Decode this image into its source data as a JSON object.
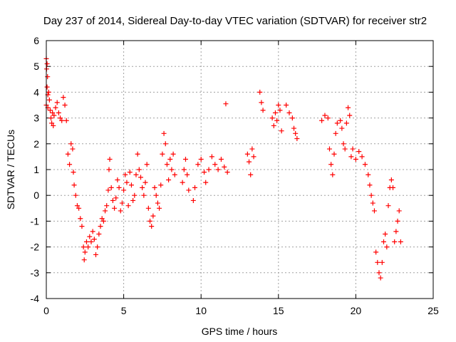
{
  "chart_data": {
    "type": "scatter",
    "title": "Day 237 of 2014, Sidereal Day-to-day VTEC variation (SDTVAR) for receiver str2",
    "xlabel": "GPS time / hours",
    "ylabel": "SDTVAR / TECUs",
    "xlim": [
      0,
      25
    ],
    "ylim": [
      -4,
      6
    ],
    "x_ticks": [
      0,
      5,
      10,
      15,
      20,
      25
    ],
    "x_tick_labels": [
      "0",
      "5",
      "10",
      "15",
      "20",
      "25"
    ],
    "y_ticks": [
      -4,
      -3,
      -2,
      -1,
      0,
      1,
      2,
      3,
      4,
      5,
      6
    ],
    "y_tick_labels": [
      "-4",
      "-3",
      "-2",
      "-1",
      "0",
      "1",
      "2",
      "3",
      "4",
      "5",
      "6"
    ],
    "grid": true,
    "marker": "plus",
    "color": "#ff0000",
    "series": [
      {
        "name": "SDTVAR",
        "points": [
          [
            0.0,
            5.3
          ],
          [
            0.0,
            3.5
          ],
          [
            0.02,
            4.9
          ],
          [
            0.05,
            5.1
          ],
          [
            0.05,
            4.2
          ],
          [
            0.08,
            4.6
          ],
          [
            0.1,
            3.9
          ],
          [
            0.1,
            3.4
          ],
          [
            0.15,
            4.0
          ],
          [
            0.2,
            3.7
          ],
          [
            0.25,
            3.3
          ],
          [
            0.3,
            3.0
          ],
          [
            0.35,
            2.8
          ],
          [
            0.4,
            3.2
          ],
          [
            0.45,
            2.7
          ],
          [
            0.5,
            3.1
          ],
          [
            0.6,
            3.4
          ],
          [
            0.7,
            3.6
          ],
          [
            0.8,
            3.2
          ],
          [
            0.9,
            3.0
          ],
          [
            1.0,
            2.9
          ],
          [
            1.1,
            3.8
          ],
          [
            1.2,
            3.5
          ],
          [
            1.3,
            2.9
          ],
          [
            1.4,
            1.6
          ],
          [
            1.5,
            1.2
          ],
          [
            1.6,
            2.0
          ],
          [
            1.7,
            1.8
          ],
          [
            1.75,
            0.9
          ],
          [
            1.8,
            0.4
          ],
          [
            1.9,
            0.0
          ],
          [
            2.0,
            -0.4
          ],
          [
            2.1,
            -0.5
          ],
          [
            2.2,
            -0.9
          ],
          [
            2.3,
            -1.2
          ],
          [
            2.4,
            -2.0
          ],
          [
            2.45,
            -2.5
          ],
          [
            2.5,
            -2.2
          ],
          [
            2.6,
            -1.8
          ],
          [
            2.7,
            -2.0
          ],
          [
            2.8,
            -1.6
          ],
          [
            2.9,
            -1.8
          ],
          [
            3.0,
            -1.4
          ],
          [
            3.1,
            -1.7
          ],
          [
            3.2,
            -2.3
          ],
          [
            3.3,
            -2.0
          ],
          [
            3.4,
            -1.5
          ],
          [
            3.5,
            -1.2
          ],
          [
            3.6,
            -0.9
          ],
          [
            3.7,
            -1.0
          ],
          [
            3.8,
            -0.6
          ],
          [
            3.9,
            -0.4
          ],
          [
            4.0,
            0.2
          ],
          [
            4.05,
            1.0
          ],
          [
            4.1,
            1.4
          ],
          [
            4.2,
            0.3
          ],
          [
            4.3,
            -0.2
          ],
          [
            4.4,
            -0.5
          ],
          [
            4.5,
            -0.1
          ],
          [
            4.6,
            0.6
          ],
          [
            4.7,
            0.3
          ],
          [
            4.8,
            -0.6
          ],
          [
            4.9,
            -0.3
          ],
          [
            5.0,
            0.2
          ],
          [
            5.1,
            0.8
          ],
          [
            5.2,
            0.5
          ],
          [
            5.3,
            -0.4
          ],
          [
            5.4,
            0.9
          ],
          [
            5.5,
            0.4
          ],
          [
            5.6,
            -0.2
          ],
          [
            5.7,
            0.0
          ],
          [
            5.8,
            0.8
          ],
          [
            5.9,
            1.6
          ],
          [
            6.0,
            1.0
          ],
          [
            6.1,
            0.7
          ],
          [
            6.2,
            0.3
          ],
          [
            6.3,
            0.0
          ],
          [
            6.4,
            0.5
          ],
          [
            6.5,
            1.2
          ],
          [
            6.6,
            -0.5
          ],
          [
            6.7,
            -1.0
          ],
          [
            6.8,
            -1.2
          ],
          [
            6.9,
            -0.8
          ],
          [
            7.0,
            0.3
          ],
          [
            7.1,
            0.0
          ],
          [
            7.2,
            -0.3
          ],
          [
            7.3,
            -0.5
          ],
          [
            7.4,
            0.4
          ],
          [
            7.5,
            1.6
          ],
          [
            7.6,
            2.4
          ],
          [
            7.7,
            2.0
          ],
          [
            7.8,
            1.2
          ],
          [
            7.9,
            0.6
          ],
          [
            8.0,
            1.4
          ],
          [
            8.1,
            1.0
          ],
          [
            8.2,
            1.6
          ],
          [
            8.3,
            0.8
          ],
          [
            8.8,
            0.5
          ],
          [
            8.9,
            1.0
          ],
          [
            9.0,
            1.4
          ],
          [
            9.1,
            0.8
          ],
          [
            9.2,
            0.2
          ],
          [
            9.5,
            -0.2
          ],
          [
            9.6,
            0.3
          ],
          [
            9.8,
            1.2
          ],
          [
            10.0,
            1.4
          ],
          [
            10.2,
            0.9
          ],
          [
            10.3,
            0.5
          ],
          [
            10.5,
            1.0
          ],
          [
            10.7,
            1.5
          ],
          [
            10.9,
            1.2
          ],
          [
            11.1,
            1.0
          ],
          [
            11.3,
            1.4
          ],
          [
            11.5,
            1.1
          ],
          [
            11.6,
            3.55
          ],
          [
            11.7,
            0.9
          ],
          [
            13.0,
            1.6
          ],
          [
            13.1,
            1.3
          ],
          [
            13.2,
            0.8
          ],
          [
            13.3,
            1.8
          ],
          [
            13.4,
            1.5
          ],
          [
            13.8,
            4.0
          ],
          [
            13.9,
            3.6
          ],
          [
            14.0,
            3.3
          ],
          [
            14.6,
            3.0
          ],
          [
            14.7,
            2.7
          ],
          [
            14.8,
            3.2
          ],
          [
            14.9,
            2.9
          ],
          [
            15.0,
            3.5
          ],
          [
            15.1,
            3.3
          ],
          [
            15.2,
            2.5
          ],
          [
            15.5,
            3.5
          ],
          [
            15.7,
            3.2
          ],
          [
            15.9,
            3.0
          ],
          [
            16.0,
            2.6
          ],
          [
            16.1,
            2.4
          ],
          [
            16.2,
            2.2
          ],
          [
            17.8,
            2.9
          ],
          [
            18.0,
            3.1
          ],
          [
            18.2,
            3.0
          ],
          [
            18.3,
            1.8
          ],
          [
            18.4,
            1.2
          ],
          [
            18.5,
            0.8
          ],
          [
            18.6,
            1.6
          ],
          [
            18.7,
            2.4
          ],
          [
            18.8,
            2.8
          ],
          [
            19.0,
            2.9
          ],
          [
            19.1,
            2.6
          ],
          [
            19.2,
            2.0
          ],
          [
            19.3,
            1.8
          ],
          [
            19.4,
            2.8
          ],
          [
            19.5,
            3.4
          ],
          [
            19.6,
            3.1
          ],
          [
            19.7,
            1.5
          ],
          [
            19.8,
            1.8
          ],
          [
            20.0,
            1.4
          ],
          [
            20.2,
            1.7
          ],
          [
            20.4,
            1.5
          ],
          [
            20.6,
            1.2
          ],
          [
            20.8,
            0.8
          ],
          [
            20.9,
            0.4
          ],
          [
            21.0,
            0.0
          ],
          [
            21.1,
            -0.3
          ],
          [
            21.2,
            -0.6
          ],
          [
            21.3,
            -2.2
          ],
          [
            21.4,
            -2.6
          ],
          [
            21.5,
            -3.0
          ],
          [
            21.6,
            -3.2
          ],
          [
            21.7,
            -2.6
          ],
          [
            21.8,
            -1.8
          ],
          [
            21.9,
            -1.5
          ],
          [
            22.0,
            -2.0
          ],
          [
            22.1,
            -0.4
          ],
          [
            22.2,
            0.3
          ],
          [
            22.3,
            0.6
          ],
          [
            22.4,
            0.3
          ],
          [
            22.5,
            -1.8
          ],
          [
            22.6,
            -1.4
          ],
          [
            22.7,
            -1.0
          ],
          [
            22.8,
            -0.6
          ],
          [
            22.9,
            -1.8
          ]
        ]
      }
    ]
  }
}
